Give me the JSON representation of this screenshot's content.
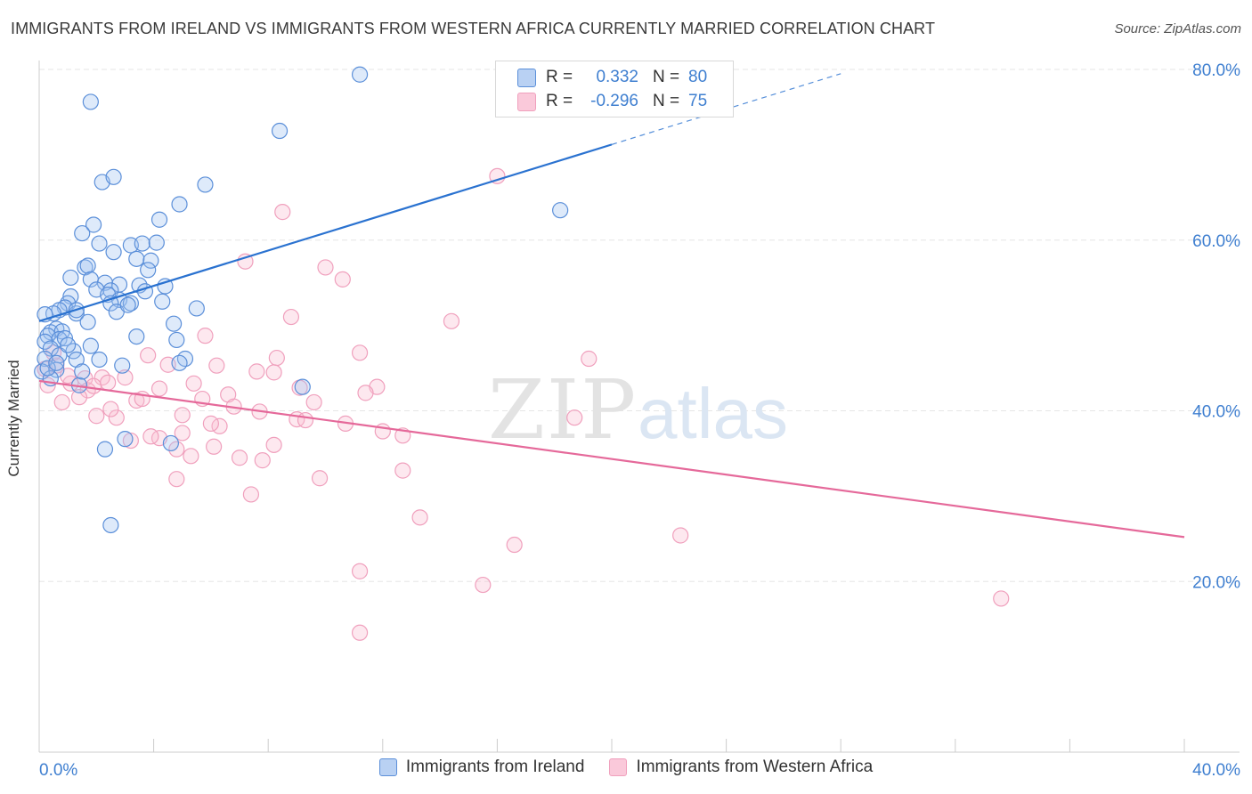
{
  "title": "IMMIGRANTS FROM IRELAND VS IMMIGRANTS FROM WESTERN AFRICA CURRENTLY MARRIED CORRELATION CHART",
  "source": "Source: ZipAtlas.com",
  "watermark": {
    "zip": "ZIP",
    "atlas": "atlas"
  },
  "colors": {
    "blue": "#5b8fd9",
    "blue_line": "#2a72d0",
    "pink": "#f0a0bd",
    "pink_line": "#e5699a",
    "value_text": "#3f7fd0"
  },
  "stats": [
    {
      "r_label": "R =",
      "r": "0.332",
      "n_label": "N =",
      "n": "80"
    },
    {
      "r_label": "R =",
      "r": "-0.296",
      "n_label": "N =",
      "n": "75"
    }
  ],
  "chart_data": {
    "type": "scatter",
    "title": "IMMIGRANTS FROM IRELAND VS IMMIGRANTS FROM WESTERN AFRICA CURRENTLY MARRIED CORRELATION CHART",
    "xlabel": "",
    "ylabel": "Currently Married",
    "xlim": [
      0,
      40
    ],
    "ylim": [
      0,
      80
    ],
    "x_tick_labels": [
      "0.0%",
      "40.0%"
    ],
    "y_ticks": [
      20,
      40,
      60,
      80
    ],
    "y_tick_labels": [
      "20.0%",
      "40.0%",
      "60.0%",
      "80.0%"
    ],
    "grid": true,
    "legend_position": "bottom",
    "series": [
      {
        "name": "Immigrants from Ireland",
        "color": "#5b8fd9",
        "trend": {
          "x": [
            0.0,
            20.0
          ],
          "y": [
            50.5,
            71.2
          ],
          "dashed_to": {
            "x": 28.0,
            "y": 79.5
          }
        },
        "points": [
          [
            1.8,
            76.2
          ],
          [
            11.2,
            79.4
          ],
          [
            8.4,
            72.8
          ],
          [
            2.2,
            66.8
          ],
          [
            2.6,
            67.4
          ],
          [
            5.8,
            66.5
          ],
          [
            4.9,
            64.2
          ],
          [
            4.2,
            62.4
          ],
          [
            1.9,
            61.8
          ],
          [
            1.5,
            60.8
          ],
          [
            18.2,
            63.5
          ],
          [
            2.1,
            59.6
          ],
          [
            3.2,
            59.4
          ],
          [
            3.6,
            59.6
          ],
          [
            4.1,
            59.7
          ],
          [
            2.6,
            58.6
          ],
          [
            3.4,
            57.8
          ],
          [
            3.9,
            57.6
          ],
          [
            3.8,
            56.5
          ],
          [
            1.6,
            56.8
          ],
          [
            1.7,
            57.0
          ],
          [
            1.1,
            55.6
          ],
          [
            1.8,
            55.4
          ],
          [
            2.3,
            55.0
          ],
          [
            2.8,
            54.8
          ],
          [
            2.0,
            54.2
          ],
          [
            2.5,
            54.1
          ],
          [
            3.5,
            54.7
          ],
          [
            4.4,
            54.6
          ],
          [
            3.7,
            54.0
          ],
          [
            1.1,
            53.4
          ],
          [
            2.4,
            53.6
          ],
          [
            2.8,
            53.0
          ],
          [
            2.5,
            52.6
          ],
          [
            4.3,
            52.8
          ],
          [
            3.2,
            52.6
          ],
          [
            1.0,
            52.6
          ],
          [
            0.9,
            52.1
          ],
          [
            0.7,
            51.8
          ],
          [
            0.5,
            51.4
          ],
          [
            0.2,
            51.3
          ],
          [
            1.3,
            51.4
          ],
          [
            2.7,
            51.6
          ],
          [
            1.3,
            51.8
          ],
          [
            1.7,
            50.4
          ],
          [
            0.6,
            49.6
          ],
          [
            0.4,
            49.2
          ],
          [
            0.8,
            49.3
          ],
          [
            4.7,
            50.2
          ],
          [
            0.3,
            48.8
          ],
          [
            0.7,
            48.4
          ],
          [
            0.2,
            48.1
          ],
          [
            0.9,
            48.5
          ],
          [
            3.4,
            48.7
          ],
          [
            4.8,
            48.3
          ],
          [
            0.4,
            47.3
          ],
          [
            1.8,
            47.6
          ],
          [
            1.2,
            47.0
          ],
          [
            0.7,
            46.5
          ],
          [
            0.2,
            46.1
          ],
          [
            1.3,
            46.0
          ],
          [
            2.1,
            46.0
          ],
          [
            5.1,
            46.1
          ],
          [
            4.9,
            45.6
          ],
          [
            0.1,
            44.6
          ],
          [
            0.6,
            44.8
          ],
          [
            2.9,
            45.3
          ],
          [
            0.4,
            43.8
          ],
          [
            1.4,
            43.0
          ],
          [
            9.2,
            42.8
          ],
          [
            3.0,
            36.7
          ],
          [
            2.3,
            35.5
          ],
          [
            4.6,
            36.2
          ],
          [
            2.5,
            26.6
          ],
          [
            0.3,
            45.0
          ],
          [
            0.6,
            45.6
          ],
          [
            1.0,
            47.7
          ],
          [
            1.5,
            44.6
          ],
          [
            3.1,
            52.4
          ],
          [
            5.5,
            52.0
          ]
        ]
      },
      {
        "name": "Immigrants from Western Africa",
        "color": "#f0a0bd",
        "trend": {
          "x": [
            0.0,
            40.0
          ],
          "y": [
            43.5,
            25.2
          ]
        },
        "points": [
          [
            16.0,
            67.5
          ],
          [
            8.5,
            63.3
          ],
          [
            7.2,
            57.5
          ],
          [
            10.0,
            56.8
          ],
          [
            10.6,
            55.4
          ],
          [
            8.8,
            51.0
          ],
          [
            14.4,
            50.5
          ],
          [
            5.8,
            48.8
          ],
          [
            11.2,
            46.8
          ],
          [
            19.2,
            46.1
          ],
          [
            8.3,
            46.2
          ],
          [
            3.8,
            46.5
          ],
          [
            4.5,
            45.4
          ],
          [
            6.2,
            45.3
          ],
          [
            7.6,
            44.6
          ],
          [
            8.2,
            44.5
          ],
          [
            0.2,
            44.9
          ],
          [
            0.6,
            45.3
          ],
          [
            1.6,
            43.8
          ],
          [
            2.2,
            43.9
          ],
          [
            2.4,
            43.3
          ],
          [
            1.1,
            43.2
          ],
          [
            5.4,
            43.2
          ],
          [
            1.7,
            42.4
          ],
          [
            4.2,
            42.6
          ],
          [
            9.1,
            42.7
          ],
          [
            11.8,
            42.8
          ],
          [
            11.4,
            42.1
          ],
          [
            6.6,
            41.9
          ],
          [
            1.4,
            41.6
          ],
          [
            3.4,
            41.2
          ],
          [
            3.6,
            41.4
          ],
          [
            0.8,
            41.0
          ],
          [
            5.0,
            39.5
          ],
          [
            7.7,
            39.9
          ],
          [
            2.0,
            39.4
          ],
          [
            2.7,
            39.2
          ],
          [
            9.0,
            39.0
          ],
          [
            9.3,
            38.9
          ],
          [
            10.7,
            38.5
          ],
          [
            6.3,
            38.2
          ],
          [
            6.0,
            38.5
          ],
          [
            12.0,
            37.6
          ],
          [
            5.0,
            37.4
          ],
          [
            12.7,
            37.1
          ],
          [
            4.2,
            36.8
          ],
          [
            3.9,
            37.0
          ],
          [
            3.2,
            36.5
          ],
          [
            6.1,
            35.8
          ],
          [
            8.2,
            36.0
          ],
          [
            4.8,
            35.5
          ],
          [
            5.3,
            34.7
          ],
          [
            7.0,
            34.5
          ],
          [
            7.8,
            34.2
          ],
          [
            12.7,
            33.0
          ],
          [
            9.8,
            32.1
          ],
          [
            4.8,
            32.0
          ],
          [
            7.4,
            30.2
          ],
          [
            13.3,
            27.5
          ],
          [
            16.6,
            24.3
          ],
          [
            22.4,
            25.4
          ],
          [
            11.2,
            21.2
          ],
          [
            15.5,
            19.6
          ],
          [
            33.6,
            18.0
          ],
          [
            11.2,
            14.0
          ],
          [
            18.7,
            39.2
          ],
          [
            0.5,
            46.8
          ],
          [
            1.0,
            44.1
          ],
          [
            2.5,
            40.2
          ],
          [
            5.7,
            41.4
          ],
          [
            6.8,
            40.5
          ],
          [
            9.6,
            41.0
          ],
          [
            0.3,
            43.0
          ],
          [
            3.0,
            43.9
          ],
          [
            1.9,
            42.9
          ]
        ]
      }
    ]
  }
}
